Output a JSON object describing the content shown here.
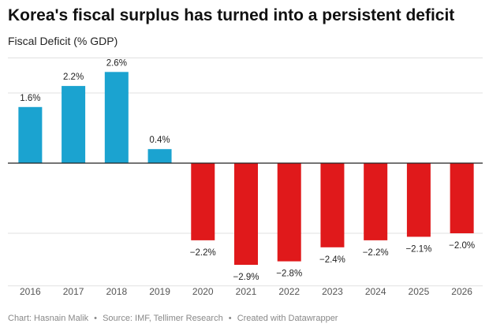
{
  "title": "Korea's fiscal surplus has turned into a persistent deficit",
  "subtitle": "Fiscal Deficit (% GDP)",
  "footer": {
    "chart_by": "Chart: Hasnain Malik",
    "source": "Source: IMF, Tellimer Research",
    "created_with": "Created with Datawrapper",
    "separator": "•"
  },
  "colors": {
    "positive": "#1ba3d0",
    "negative": "#e0191b",
    "grid": "#e1e1e1",
    "zero_line": "#222222"
  },
  "chart_data": {
    "type": "bar",
    "title": "Korea's fiscal surplus has turned into a persistent deficit",
    "ylabel": "Fiscal Deficit (% GDP)",
    "categories": [
      "2016",
      "2017",
      "2018",
      "2019",
      "2020",
      "2021",
      "2022",
      "2023",
      "2024",
      "2025",
      "2026"
    ],
    "values": [
      1.6,
      2.2,
      2.6,
      0.4,
      -2.2,
      -2.9,
      -2.8,
      -2.4,
      -2.2,
      -2.1,
      -2.0
    ],
    "labels": [
      "1.6%",
      "2.2%",
      "2.6%",
      "0.4%",
      "−2.2%",
      "−2.9%",
      "−2.8%",
      "−2.4%",
      "−2.2%",
      "−2.1%",
      "−2.0%"
    ],
    "ylim": [
      -3,
      3
    ],
    "gridlines": [
      -2,
      0,
      2
    ],
    "grid": true,
    "legend": "none"
  }
}
